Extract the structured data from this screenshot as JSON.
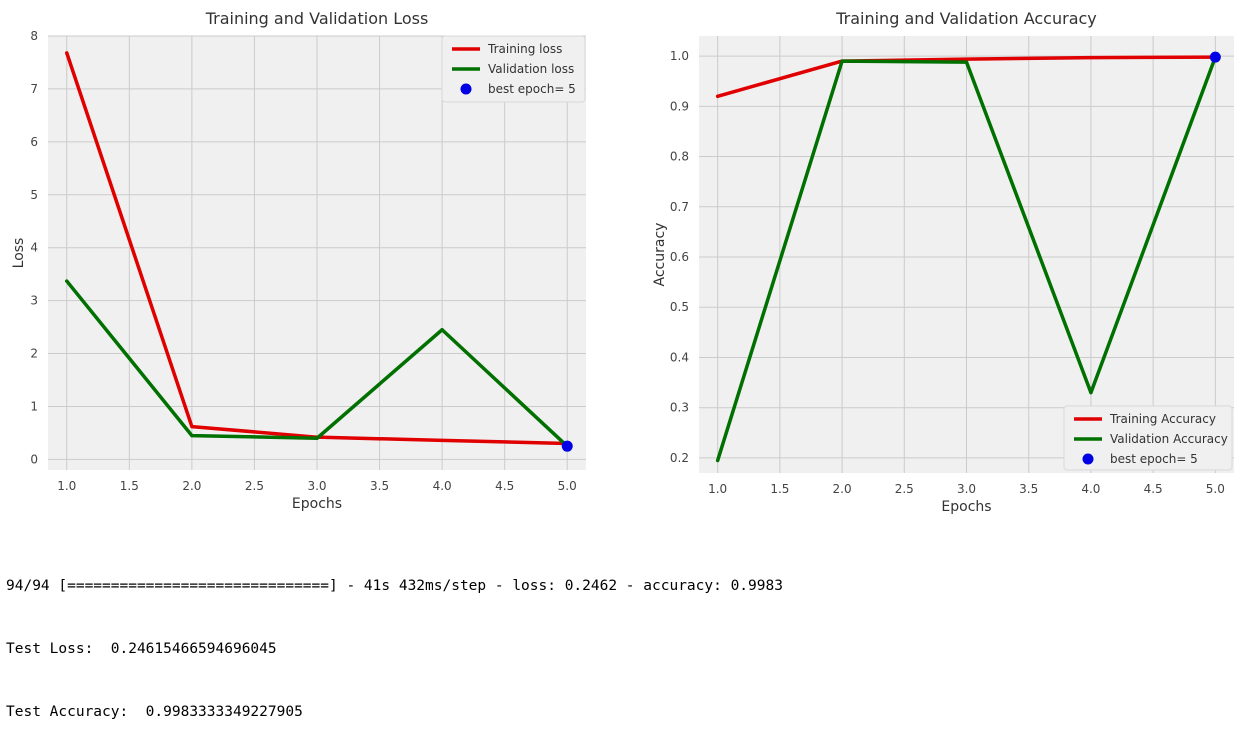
{
  "chart_data": [
    {
      "type": "line",
      "title": "Training and Validation Loss",
      "xlabel": "Epochs",
      "ylabel": "Loss",
      "xlim": [
        0.85,
        5.15
      ],
      "ylim": [
        -0.2,
        8.0
      ],
      "xticks": [
        1.0,
        1.5,
        2.0,
        2.5,
        3.0,
        3.5,
        4.0,
        4.5,
        5.0
      ],
      "xtick_labels": [
        "1.0",
        "1.5",
        "2.0",
        "2.5",
        "3.0",
        "3.5",
        "4.0",
        "4.5",
        "5.0"
      ],
      "yticks": [
        0,
        1,
        2,
        3,
        4,
        5,
        6,
        7,
        8
      ],
      "ytick_labels": [
        "0",
        "1",
        "2",
        "3",
        "4",
        "5",
        "6",
        "7",
        "8"
      ],
      "grid": true,
      "legend_position": "top-right",
      "x": [
        1,
        2,
        3,
        4,
        5
      ],
      "series": [
        {
          "name": "Training loss",
          "color": "#e00000",
          "values": [
            7.68,
            0.62,
            0.42,
            0.36,
            0.3
          ]
        },
        {
          "name": "Validation loss",
          "color": "#007000",
          "values": [
            3.37,
            0.45,
            0.4,
            2.45,
            0.25
          ]
        }
      ],
      "best_point": {
        "name": "best epoch= 5",
        "color": "#0000e6",
        "x": 5,
        "y": 0.25
      }
    },
    {
      "type": "line",
      "title": "Training and Validation Accuracy",
      "xlabel": "Epochs",
      "ylabel": "Accuracy",
      "xlim": [
        0.85,
        5.15
      ],
      "ylim": [
        0.17,
        1.04
      ],
      "xticks": [
        1.0,
        1.5,
        2.0,
        2.5,
        3.0,
        3.5,
        4.0,
        4.5,
        5.0
      ],
      "xtick_labels": [
        "1.0",
        "1.5",
        "2.0",
        "2.5",
        "3.0",
        "3.5",
        "4.0",
        "4.5",
        "5.0"
      ],
      "yticks": [
        0.2,
        0.3,
        0.4,
        0.5,
        0.6,
        0.7,
        0.8,
        0.9,
        1.0
      ],
      "ytick_labels": [
        "0.2",
        "0.3",
        "0.4",
        "0.5",
        "0.6",
        "0.7",
        "0.8",
        "0.9",
        "1.0"
      ],
      "grid": true,
      "legend_position": "bottom-right",
      "x": [
        1,
        2,
        3,
        4,
        5
      ],
      "series": [
        {
          "name": "Training Accuracy",
          "color": "#e00000",
          "values": [
            0.92,
            0.99,
            0.994,
            0.997,
            0.998
          ]
        },
        {
          "name": "Validation Accuracy",
          "color": "#007000",
          "values": [
            0.195,
            0.99,
            0.988,
            0.33,
            0.998
          ]
        }
      ],
      "best_point": {
        "name": "best epoch= 5",
        "color": "#0000e6",
        "x": 5,
        "y": 0.998
      }
    }
  ],
  "console": {
    "line1": "94/94 [==============================] - 41s 432ms/step - loss: 0.2462 - accuracy: 0.9983",
    "line2": "Test Loss:  0.24615466594696045",
    "line3": "Test Accuracy:  0.9983333349227905"
  },
  "colors": {
    "panel_bg": "#f0f0f0",
    "grid": "#cbcbcb",
    "text": "#444444"
  }
}
